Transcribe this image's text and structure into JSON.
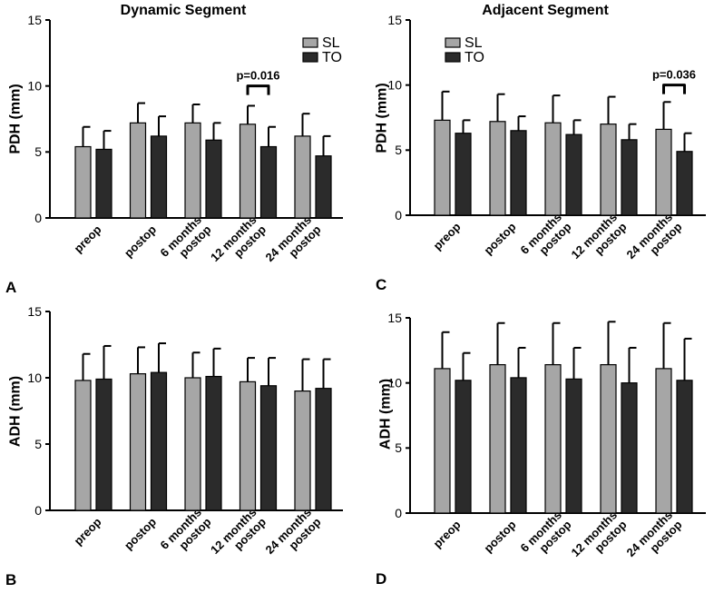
{
  "colors": {
    "SL": "#a6a6a6",
    "TO": "#2b2b2b",
    "axis": "#000000",
    "background": "#ffffff"
  },
  "chart_data": [
    {
      "id": "A",
      "type": "bar",
      "panel_letter": "A",
      "title": "Dynamic Segment",
      "xlabel": "",
      "ylabel": "PDH (mm)",
      "ylim": [
        0,
        15
      ],
      "yticks": [
        "0",
        "5",
        "10",
        "15"
      ],
      "categories": [
        "preop",
        "postop",
        "6 months postop",
        "12 months postop",
        "24 months postop"
      ],
      "category_lines": [
        [
          "preop"
        ],
        [
          "postop"
        ],
        [
          "6 months",
          "postop"
        ],
        [
          "12 months",
          "postop"
        ],
        [
          "24 months",
          "postop"
        ]
      ],
      "series": [
        {
          "name": "SL",
          "values": [
            5.4,
            7.2,
            7.2,
            7.1,
            6.2
          ],
          "error": [
            1.5,
            1.5,
            1.4,
            1.4,
            1.7
          ]
        },
        {
          "name": "TO",
          "values": [
            5.2,
            6.2,
            5.9,
            5.4,
            4.7
          ],
          "error": [
            1.4,
            1.5,
            1.3,
            1.5,
            1.5
          ]
        }
      ],
      "legend": {
        "show": true,
        "position": "top-right"
      },
      "annotation": {
        "text": "p=0.016",
        "category_index": 3
      },
      "grid": false
    },
    {
      "id": "C",
      "type": "bar",
      "panel_letter": "C",
      "title": "Adjacent Segment",
      "xlabel": "",
      "ylabel": "PDH (mm)",
      "ylim": [
        0,
        15
      ],
      "yticks": [
        "0",
        "5",
        "10",
        "15"
      ],
      "categories": [
        "preop",
        "postop",
        "6 months postop",
        "12 months postop",
        "24 months postop"
      ],
      "category_lines": [
        [
          "preop"
        ],
        [
          "postop"
        ],
        [
          "6 months",
          "postop"
        ],
        [
          "12 months",
          "postop"
        ],
        [
          "24 months",
          "postop"
        ]
      ],
      "series": [
        {
          "name": "SL",
          "values": [
            7.3,
            7.2,
            7.1,
            7.0,
            6.6
          ],
          "error": [
            2.2,
            2.1,
            2.1,
            2.1,
            2.1
          ]
        },
        {
          "name": "TO",
          "values": [
            6.3,
            6.5,
            6.2,
            5.8,
            4.9
          ],
          "error": [
            1.0,
            1.1,
            1.1,
            1.2,
            1.4
          ]
        }
      ],
      "legend": {
        "show": true,
        "position": "top-left"
      },
      "annotation": {
        "text": "p=0.036",
        "category_index": 4
      },
      "grid": false
    },
    {
      "id": "B",
      "type": "bar",
      "panel_letter": "B",
      "title": "",
      "xlabel": "",
      "ylabel": "ADH (mm)",
      "ylim": [
        0,
        15
      ],
      "yticks": [
        "0",
        "5",
        "10",
        "15"
      ],
      "categories": [
        "preop",
        "postop",
        "6 months postop",
        "12 months postop",
        "24 months postop"
      ],
      "category_lines": [
        [
          "preop"
        ],
        [
          "postop"
        ],
        [
          "6 months",
          "postop"
        ],
        [
          "12 months",
          "postop"
        ],
        [
          "24 months",
          "postop"
        ]
      ],
      "series": [
        {
          "name": "SL",
          "values": [
            9.8,
            10.3,
            10.0,
            9.7,
            9.0
          ],
          "error": [
            2.0,
            2.0,
            1.9,
            1.8,
            2.4
          ]
        },
        {
          "name": "TO",
          "values": [
            9.9,
            10.4,
            10.1,
            9.4,
            9.2
          ],
          "error": [
            2.5,
            2.2,
            2.1,
            2.1,
            2.2
          ]
        }
      ],
      "legend": {
        "show": false
      },
      "grid": false
    },
    {
      "id": "D",
      "type": "bar",
      "panel_letter": "D",
      "title": "",
      "xlabel": "",
      "ylabel": "ADH (mm)",
      "ylim": [
        0,
        15
      ],
      "yticks": [
        "0",
        "5",
        "10",
        "15"
      ],
      "categories": [
        "preop",
        "postop",
        "6 months postop",
        "12 months postop",
        "24 months postop"
      ],
      "category_lines": [
        [
          "preop"
        ],
        [
          "postop"
        ],
        [
          "6 months",
          "postop"
        ],
        [
          "12 months",
          "postop"
        ],
        [
          "24 months",
          "postop"
        ]
      ],
      "series": [
        {
          "name": "SL",
          "values": [
            11.1,
            11.4,
            11.4,
            11.4,
            11.1
          ],
          "error": [
            2.8,
            3.2,
            3.2,
            3.3,
            3.5
          ]
        },
        {
          "name": "TO",
          "values": [
            10.2,
            10.4,
            10.3,
            10.0,
            10.2
          ],
          "error": [
            2.1,
            2.3,
            2.4,
            2.7,
            3.2
          ]
        }
      ],
      "legend": {
        "show": false
      },
      "grid": false
    }
  ]
}
